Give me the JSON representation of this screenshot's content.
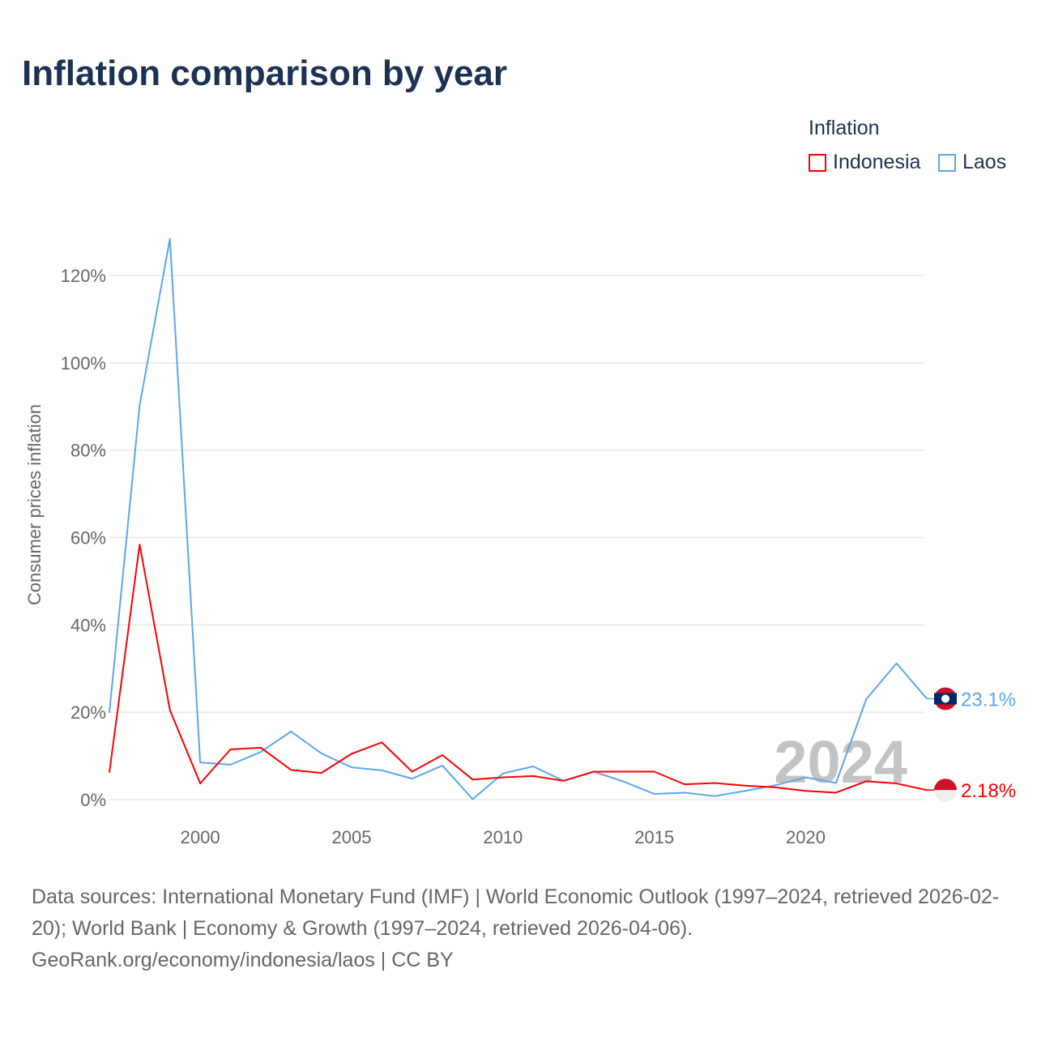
{
  "title": "Inflation comparison by year",
  "legend": {
    "title": "Inflation",
    "items": [
      {
        "label": "Indonesia",
        "color": "#ff0000"
      },
      {
        "label": "Laos",
        "color": "#5ca6ec"
      }
    ]
  },
  "source": {
    "line1": "Data sources: International Monetary Fund (IMF) | World Economic Outlook (1997–2024, retrieved 2026-02-20); World Bank | Economy & Growth (1997–2024, retrieved 2026-04-06).",
    "line2": "GeoRank.org/economy/indonesia/laos | CC BY"
  },
  "chart_data": {
    "type": "line",
    "title": "Inflation comparison by year",
    "ylabel": "Consumer prices inflation",
    "xlabel": "",
    "ylim": [
      0,
      130
    ],
    "xlim": [
      1997,
      2024
    ],
    "yticks": [
      0,
      20,
      40,
      60,
      80,
      100,
      120
    ],
    "ytick_labels": [
      "0%",
      "20%",
      "40%",
      "60%",
      "80%",
      "100%",
      "120%"
    ],
    "xticks": [
      2000,
      2005,
      2010,
      2015,
      2020
    ],
    "xtick_labels": [
      "2000",
      "2005",
      "2010",
      "2015",
      "2020"
    ],
    "year_watermark": "2024",
    "x": [
      1997,
      1998,
      1999,
      2000,
      2001,
      2002,
      2003,
      2004,
      2005,
      2006,
      2007,
      2008,
      2009,
      2010,
      2011,
      2012,
      2013,
      2014,
      2015,
      2016,
      2017,
      2018,
      2019,
      2020,
      2021,
      2022,
      2023,
      2024
    ],
    "series": [
      {
        "name": "Indonesia",
        "color": "#ff0000",
        "end_label": "2.18%",
        "values": [
          6.2,
          58.4,
          20.5,
          3.7,
          11.5,
          11.9,
          6.8,
          6.1,
          10.5,
          13.1,
          6.4,
          10.2,
          4.6,
          5.1,
          5.4,
          4.3,
          6.4,
          6.4,
          6.4,
          3.5,
          3.8,
          3.2,
          2.8,
          2.0,
          1.6,
          4.2,
          3.7,
          2.18
        ]
      },
      {
        "name": "Laos",
        "color": "#5ca6ec",
        "end_label": "23.1%",
        "values": [
          19.9,
          90.3,
          128.4,
          8.5,
          8.0,
          10.9,
          15.6,
          10.6,
          7.4,
          6.7,
          4.8,
          7.8,
          0.1,
          6.0,
          7.6,
          4.3,
          6.4,
          4.1,
          1.3,
          1.6,
          0.8,
          2.0,
          3.3,
          5.1,
          3.8,
          23.0,
          31.2,
          23.1
        ]
      }
    ],
    "grid": true,
    "legend_position": "top-right"
  }
}
